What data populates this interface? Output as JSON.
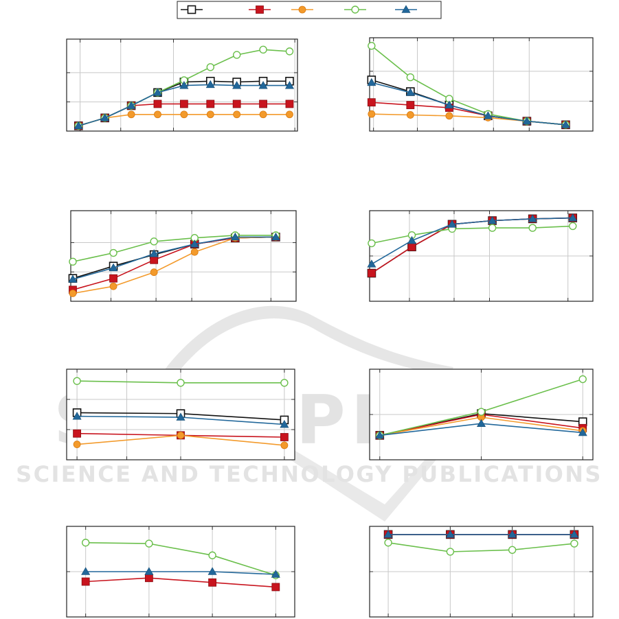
{
  "watermark": {
    "big": "SCITEPRESS",
    "sub": "SCIENCE AND TECHNOLOGY PUBLICATIONS"
  },
  "legend": {
    "entries": [
      {
        "marker": "square-open",
        "color": "#111111"
      },
      {
        "marker": "square",
        "color": "#c8141e"
      },
      {
        "marker": "circle",
        "color": "#f39a2b"
      },
      {
        "marker": "circle-open",
        "color": "#6abf4b"
      },
      {
        "marker": "triangle",
        "color": "#21679a"
      }
    ]
  },
  "series_styles": [
    {
      "key": "black",
      "color": "#111111",
      "marker": "square-open"
    },
    {
      "key": "red",
      "color": "#c8141e",
      "marker": "square"
    },
    {
      "key": "orange",
      "color": "#f39a2b",
      "marker": "circle"
    },
    {
      "key": "green",
      "color": "#6abf4b",
      "marker": "circle-open"
    },
    {
      "key": "blue",
      "color": "#21679a",
      "marker": "triangle"
    }
  ],
  "chart_data": [
    {
      "type": "line",
      "panel": "row1-left",
      "x": [
        0,
        1,
        2,
        3,
        4,
        5,
        6,
        7,
        8
      ],
      "xgrid": [
        0.06,
        1.6,
        3.6,
        8.2
      ],
      "xlim": [
        -0.45,
        8.3
      ],
      "ylim": [
        0,
        1.05
      ],
      "ygrid": [
        0.3333,
        0.6667
      ],
      "grid": true,
      "series": [
        {
          "style": "black",
          "values": [
            0.06,
            0.15,
            0.29,
            0.44,
            0.56,
            0.57,
            0.56,
            0.57,
            0.57
          ]
        },
        {
          "style": "red",
          "values": [
            0.06,
            0.15,
            0.29,
            0.31,
            0.31,
            0.31,
            0.31,
            0.31,
            0.31
          ]
        },
        {
          "style": "orange",
          "values": [
            0.06,
            0.15,
            0.19,
            0.19,
            0.19,
            0.19,
            0.19,
            0.19,
            0.19
          ]
        },
        {
          "style": "green",
          "values": [
            0.06,
            0.15,
            0.29,
            0.44,
            0.58,
            0.73,
            0.87,
            0.93,
            0.91
          ]
        },
        {
          "style": "blue",
          "values": [
            0.06,
            0.15,
            0.29,
            0.44,
            0.52,
            0.53,
            0.52,
            0.52,
            0.52
          ]
        }
      ]
    },
    {
      "type": "line",
      "panel": "row1-right",
      "x": [
        0,
        1,
        2,
        3,
        4,
        5
      ],
      "xgrid": [
        0.05,
        1.18,
        2.11,
        3.14,
        4.06
      ],
      "xlim": [
        -0.05,
        5.7
      ],
      "ylim": [
        0,
        1.04
      ],
      "ygrid": [
        0.3333,
        0.6667
      ],
      "grid": true,
      "series": [
        {
          "style": "black",
          "values": [
            0.57,
            0.44,
            0.29,
            0.17,
            0.11,
            0.07
          ]
        },
        {
          "style": "red",
          "values": [
            0.32,
            0.29,
            0.26,
            0.17,
            0.11,
            0.07
          ]
        },
        {
          "style": "orange",
          "values": [
            0.19,
            0.18,
            0.17,
            0.15,
            0.11,
            0.07
          ]
        },
        {
          "style": "green",
          "values": [
            0.95,
            0.6,
            0.36,
            0.19,
            0.11,
            0.07
          ]
        },
        {
          "style": "blue",
          "values": [
            0.54,
            0.43,
            0.29,
            0.17,
            0.11,
            0.07
          ]
        }
      ]
    },
    {
      "type": "line",
      "panel": "row2-left",
      "x": [
        0,
        1,
        2,
        3,
        4,
        5
      ],
      "xgrid": [
        0.94,
        2.05,
        2.93,
        4.88
      ],
      "xlim": [
        -0.05,
        5.5
      ],
      "ylim": [
        0,
        1.03
      ],
      "ygrid": [
        0.3333,
        0.6667
      ],
      "grid": true,
      "series": [
        {
          "style": "black",
          "values": [
            0.26,
            0.4,
            0.53,
            0.65,
            0.72,
            0.73
          ]
        },
        {
          "style": "red",
          "values": [
            0.13,
            0.26,
            0.47,
            0.65,
            0.72,
            0.73
          ]
        },
        {
          "style": "orange",
          "values": [
            0.09,
            0.17,
            0.33,
            0.56,
            0.72,
            0.73
          ]
        },
        {
          "style": "green",
          "values": [
            0.45,
            0.55,
            0.68,
            0.72,
            0.75,
            0.75
          ]
        },
        {
          "style": "blue",
          "values": [
            0.25,
            0.38,
            0.54,
            0.65,
            0.73,
            0.73
          ]
        }
      ]
    },
    {
      "type": "line",
      "panel": "row2-right",
      "x": [
        0,
        1,
        2,
        3,
        4,
        5
      ],
      "xgrid": [
        0.94,
        2.05,
        2.93,
        4.88
      ],
      "xlim": [
        -0.05,
        5.5
      ],
      "ylim": [
        0,
        1.0
      ],
      "ygrid": [
        0.5
      ],
      "grid": true,
      "series": [
        {
          "style": "black",
          "values": [
            0.31,
            0.6,
            0.85,
            0.89,
            0.91,
            0.92
          ]
        },
        {
          "style": "red",
          "values": [
            0.31,
            0.6,
            0.85,
            0.89,
            0.91,
            0.92
          ]
        },
        {
          "style": "green",
          "values": [
            0.64,
            0.73,
            0.8,
            0.81,
            0.81,
            0.83
          ]
        },
        {
          "style": "blue",
          "values": [
            0.41,
            0.67,
            0.85,
            0.89,
            0.91,
            0.92
          ]
        }
      ]
    },
    {
      "type": "line",
      "panel": "row3-left",
      "x": [
        0,
        1,
        2
      ],
      "xgrid": [
        0,
        0.48,
        1.0,
        2.0
      ],
      "xlim": [
        -0.1,
        2.1
      ],
      "ylim": [
        0,
        1.0
      ],
      "ygrid": [
        0.3333,
        0.6667
      ],
      "grid": true,
      "series": [
        {
          "style": "black",
          "values": [
            0.52,
            0.51,
            0.44
          ]
        },
        {
          "style": "red",
          "values": [
            0.29,
            0.27,
            0.25
          ]
        },
        {
          "style": "orange",
          "values": [
            0.17,
            0.27,
            0.16
          ]
        },
        {
          "style": "green",
          "values": [
            0.87,
            0.85,
            0.85
          ]
        },
        {
          "style": "blue",
          "values": [
            0.48,
            0.47,
            0.39
          ]
        }
      ]
    },
    {
      "type": "line",
      "panel": "row3-right",
      "x": [
        0,
        1,
        2
      ],
      "xgrid": [
        0,
        1,
        2
      ],
      "xlim": [
        -0.1,
        2.1
      ],
      "ylim": [
        0,
        1.0
      ],
      "ygrid": [
        0.5
      ],
      "grid": true,
      "series": [
        {
          "style": "black",
          "values": [
            0.27,
            0.51,
            0.42
          ]
        },
        {
          "style": "red",
          "values": [
            0.27,
            0.5,
            0.35
          ]
        },
        {
          "style": "orange",
          "values": [
            0.27,
            0.47,
            0.32
          ]
        },
        {
          "style": "green",
          "values": [
            0.27,
            0.53,
            0.89
          ]
        },
        {
          "style": "blue",
          "values": [
            0.27,
            0.4,
            0.3
          ]
        }
      ]
    },
    {
      "type": "line",
      "panel": "row4-left",
      "x": [
        0,
        1,
        2,
        3
      ],
      "xgrid": [
        0,
        1,
        2,
        3
      ],
      "xlim": [
        -0.3,
        3.3
      ],
      "ylim": [
        0,
        1.0
      ],
      "ygrid": [
        0.5
      ],
      "grid": true,
      "series": [
        {
          "style": "red",
          "values": [
            0.39,
            0.43,
            0.38,
            0.33
          ]
        },
        {
          "style": "green",
          "values": [
            0.82,
            0.81,
            0.68,
            0.46
          ]
        },
        {
          "style": "blue",
          "values": [
            0.5,
            0.5,
            0.5,
            0.47
          ]
        }
      ]
    },
    {
      "type": "line",
      "panel": "row4-right",
      "x": [
        0,
        1,
        2,
        3
      ],
      "xgrid": [
        0,
        1,
        2,
        3
      ],
      "xlim": [
        -0.3,
        3.3
      ],
      "ylim": [
        0,
        1.0
      ],
      "ygrid": [
        0.5
      ],
      "grid": true,
      "series": [
        {
          "style": "black",
          "values": [
            0.91,
            0.91,
            0.91,
            0.91
          ]
        },
        {
          "style": "red",
          "values": [
            0.91,
            0.91,
            0.91,
            0.91
          ]
        },
        {
          "style": "green",
          "values": [
            0.82,
            0.72,
            0.74,
            0.81
          ]
        },
        {
          "style": "blue",
          "values": [
            0.91,
            0.91,
            0.91,
            0.91
          ]
        }
      ]
    }
  ]
}
